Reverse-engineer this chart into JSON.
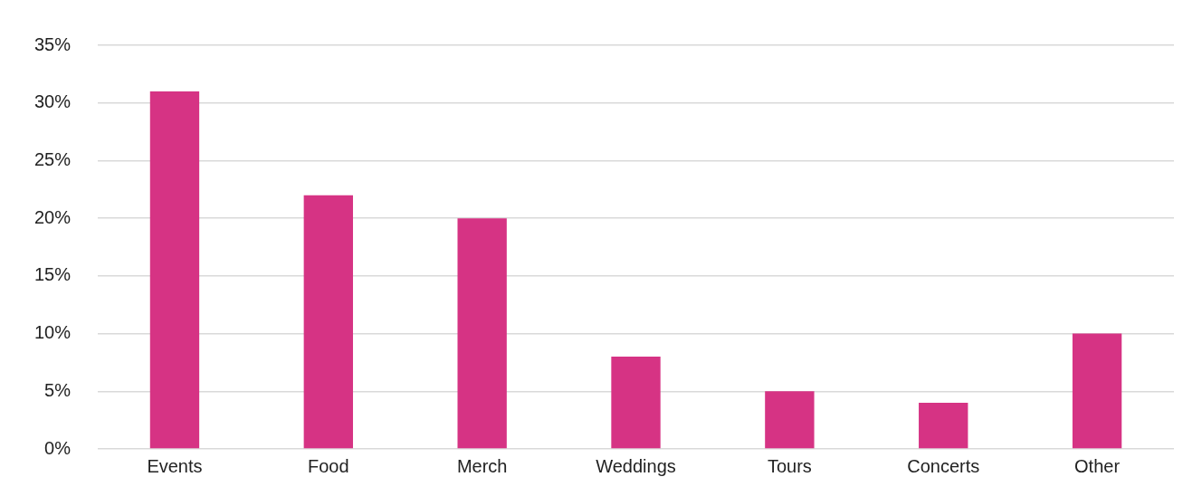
{
  "chart_data": {
    "type": "bar",
    "categories": [
      "Events",
      "Food",
      "Merch",
      "Weddings",
      "Tours",
      "Concerts",
      "Other"
    ],
    "values": [
      31,
      22,
      20,
      8,
      5,
      4,
      10
    ],
    "color": "#d63384",
    "ylim": [
      0,
      35
    ],
    "yticks": [
      {
        "value": 0,
        "label": "0%"
      },
      {
        "value": 5,
        "label": "5%"
      },
      {
        "value": 10,
        "label": "10%"
      },
      {
        "value": 15,
        "label": "15%"
      },
      {
        "value": 20,
        "label": "20%"
      },
      {
        "value": 25,
        "label": "25%"
      },
      {
        "value": 30,
        "label": "30%"
      },
      {
        "value": 35,
        "label": "35%"
      }
    ],
    "grid": "y",
    "legend": false
  }
}
